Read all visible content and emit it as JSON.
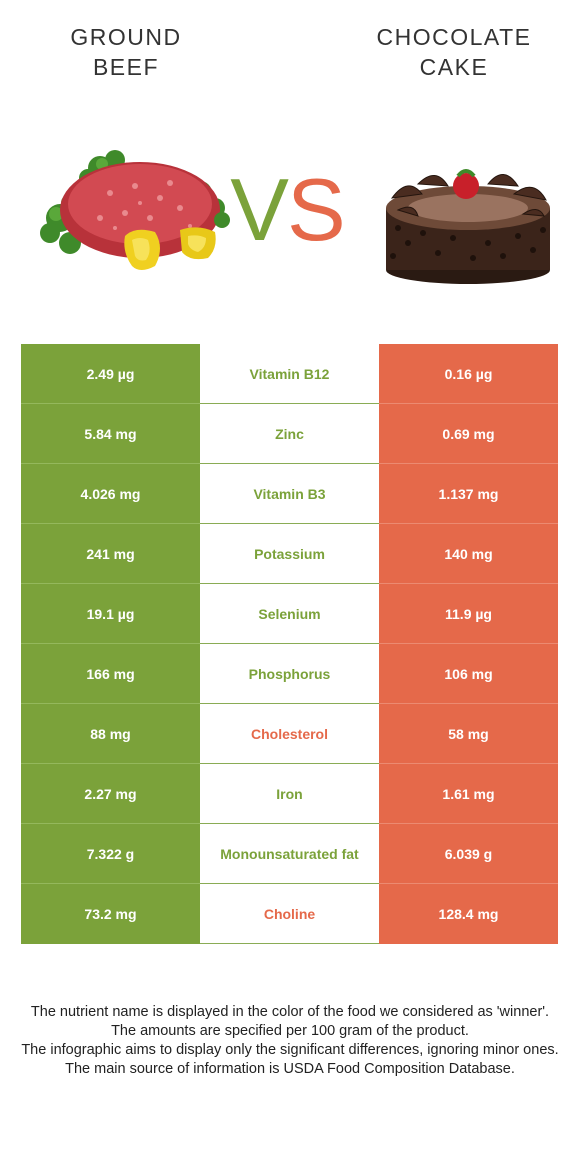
{
  "left_food": {
    "name": "GROUND BEEF",
    "color": "#7ba23a"
  },
  "right_food": {
    "name": "CHOCOLATE CAKE",
    "color": "#e5694a"
  },
  "vs": {
    "v": "V",
    "s": "S"
  },
  "rows": [
    {
      "left": "2.49 µg",
      "nutrient": "Vitamin B12",
      "right": "0.16 µg",
      "winner": "left"
    },
    {
      "left": "5.84 mg",
      "nutrient": "Zinc",
      "right": "0.69 mg",
      "winner": "left"
    },
    {
      "left": "4.026 mg",
      "nutrient": "Vitamin B3",
      "right": "1.137 mg",
      "winner": "left"
    },
    {
      "left": "241 mg",
      "nutrient": "Potassium",
      "right": "140 mg",
      "winner": "left"
    },
    {
      "left": "19.1 µg",
      "nutrient": "Selenium",
      "right": "11.9 µg",
      "winner": "left"
    },
    {
      "left": "166 mg",
      "nutrient": "Phosphorus",
      "right": "106 mg",
      "winner": "left"
    },
    {
      "left": "88 mg",
      "nutrient": "Cholesterol",
      "right": "58 mg",
      "winner": "right"
    },
    {
      "left": "2.27 mg",
      "nutrient": "Iron",
      "right": "1.61 mg",
      "winner": "left"
    },
    {
      "left": "7.322 g",
      "nutrient": "Monounsaturated fat",
      "right": "6.039 g",
      "winner": "left"
    },
    {
      "left": "73.2 mg",
      "nutrient": "Choline",
      "right": "128.4 mg",
      "winner": "right"
    }
  ],
  "footer": [
    "The nutrient name is displayed in the color of the food we considered as 'winner'.",
    "The amounts are specified per 100 gram of the product.",
    "The infographic aims to display only the significant differences, ignoring minor ones.",
    "The main source of information is USDA Food Composition Database."
  ]
}
